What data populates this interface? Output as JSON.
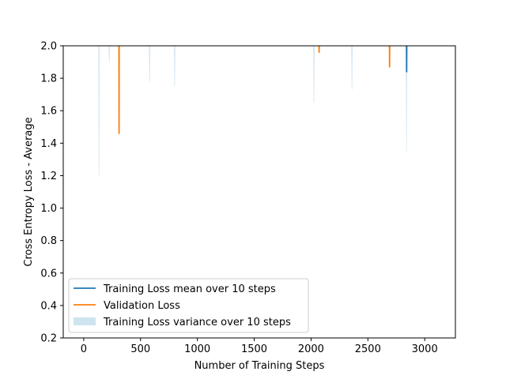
{
  "chart_data": {
    "type": "line",
    "title": "",
    "xlabel": "Number of Training Steps",
    "ylabel": "Cross Entropy Loss - Average",
    "xlim": [
      -180,
      3270
    ],
    "ylim": [
      0.2,
      2.0
    ],
    "xticks": [
      0,
      500,
      1000,
      1500,
      2000,
      2500,
      3000
    ],
    "yticks": [
      0.2,
      0.4,
      0.6,
      0.8,
      1.0,
      1.2,
      1.4,
      1.6,
      1.8,
      2.0
    ],
    "xtick_labels": [
      "0",
      "500",
      "1000",
      "1500",
      "2000",
      "2500",
      "3000"
    ],
    "ytick_labels": [
      "0.2",
      "0.4",
      "0.6",
      "0.8",
      "1.0",
      "1.2",
      "1.4",
      "1.6",
      "1.8",
      "2.0"
    ],
    "grid": false,
    "legend_position": "lower-left",
    "colors": {
      "training": "#1f77b4",
      "validation": "#ff7f0e",
      "variance": "#a6cde3"
    },
    "series": [
      {
        "name": "Training Loss mean over 10 steps",
        "kind": "line",
        "x": [
          2840,
          2841,
          2842
        ],
        "y": [
          2.0,
          1.84,
          2.0
        ]
      },
      {
        "name": "Validation Loss",
        "kind": "line",
        "x": [
          310,
          311,
          312,
          2070,
          2071,
          2072,
          2690,
          2691,
          2692
        ],
        "y": [
          2.0,
          1.46,
          2.0,
          2.0,
          1.96,
          2.0,
          2.0,
          1.87,
          2.0
        ]
      },
      {
        "name": "Training Loss variance over 10 steps",
        "kind": "band",
        "spikes": [
          {
            "x": 135,
            "y": 1.2
          },
          {
            "x": 225,
            "y": 1.9
          },
          {
            "x": 580,
            "y": 1.78
          },
          {
            "x": 800,
            "y": 1.75
          },
          {
            "x": 2025,
            "y": 1.65
          },
          {
            "x": 2360,
            "y": 1.73
          },
          {
            "x": 2840,
            "y": 1.35
          }
        ]
      }
    ]
  }
}
